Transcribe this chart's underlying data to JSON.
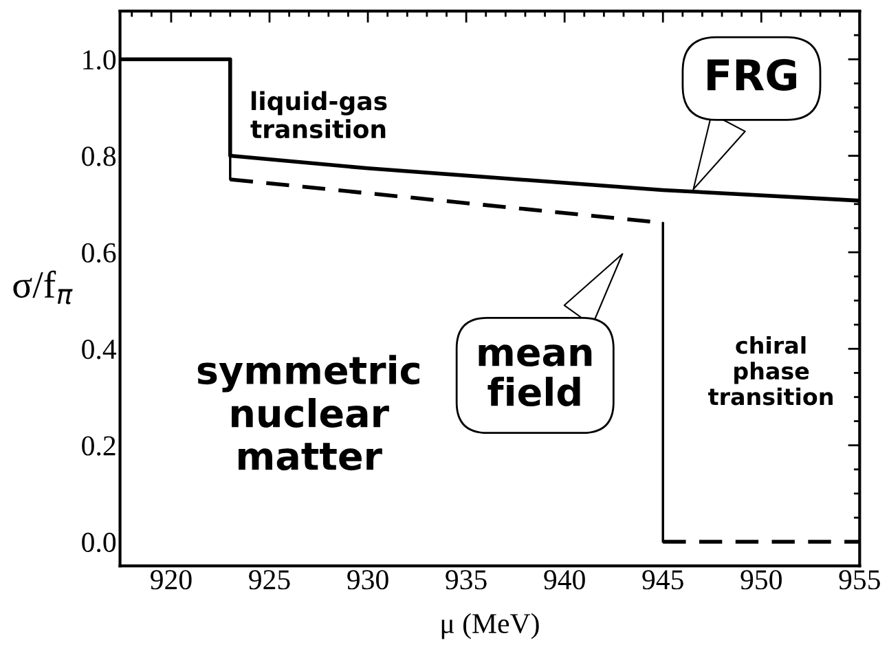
{
  "chart_data": {
    "type": "line",
    "xlabel": "μ (MeV)",
    "ylabel": "σ/f$_{π}$",
    "xlim": [
      917.4,
      955
    ],
    "ylim": [
      -0.05,
      1.1
    ],
    "xticks": [
      920,
      925,
      930,
      935,
      940,
      945,
      950,
      955
    ],
    "yticks": [
      {
        "value": 0,
        "label": "0.0"
      },
      {
        "value": 0.2,
        "label": "0.2"
      },
      {
        "value": 0.4,
        "label": "0.4"
      },
      {
        "value": 0.6,
        "label": "0.6"
      },
      {
        "value": 0.8,
        "label": "0.8"
      },
      {
        "value": 1.0,
        "label": "1.0"
      }
    ],
    "grid": false,
    "series": [
      {
        "color": "#000000",
        "line_style": "solid",
        "x": [
          917.4,
          923,
          923,
          930,
          945,
          955
        ],
        "values": [
          1.0,
          1.0,
          0.8,
          0.774,
          0.729,
          0.707
        ]
      },
      {
        "color": "#000000",
        "line_style": "dashed",
        "x": [
          923,
          945
        ],
        "values": [
          0.751,
          0.661
        ]
      },
      {
        "color": "#000000",
        "line_style": "dashed",
        "x": [
          945,
          955
        ],
        "values": [
          0,
          0
        ]
      },
      {
        "color": "#000000",
        "line_style": "solid",
        "x": [
          923,
          923
        ],
        "values": [
          0.8,
          0.751
        ]
      },
      {
        "color": "#000000",
        "line_style": "solid",
        "x": [
          945,
          945
        ],
        "values": [
          0.661,
          0
        ]
      }
    ],
    "annotations": [
      {
        "text": "FRG",
        "x": 946.5,
        "y": 0.727
      },
      "mean field",
      "liquid-gas transition",
      "chiral phase transition",
      "symmetric nuclear matter"
    ]
  }
}
